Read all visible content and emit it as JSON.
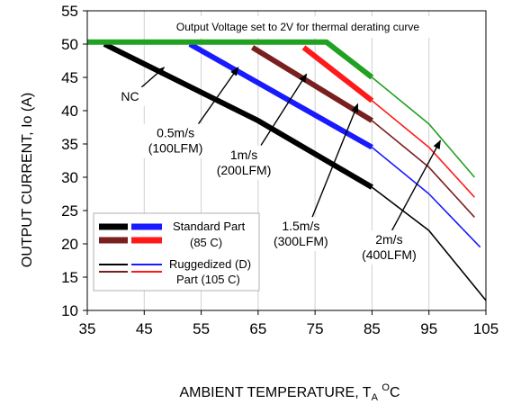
{
  "chart_data": {
    "type": "line",
    "title": "",
    "xlabel": "AMBIENT TEMPERATURE, T",
    "xlabel_sub": "A",
    "xlabel_sup": "O",
    "xlabel_unit": "C",
    "ylabel": "OUTPUT CURRENT, Io  (A)",
    "xlim": [
      35,
      105
    ],
    "ylim": [
      10,
      55
    ],
    "x_ticks": [
      "35",
      "45",
      "55",
      "65",
      "75",
      "85",
      "95",
      "105"
    ],
    "y_ticks": [
      "10",
      "15",
      "20",
      "25",
      "30",
      "35",
      "40",
      "45",
      "50",
      "55"
    ],
    "grid": "vertical",
    "note": "Output Voltage set to 2V for thermal derating curve",
    "legend": {
      "placement": "bottom-left",
      "standard_label_1": "Standard Part",
      "standard_label_2": "(85  C)",
      "rugged_label_1": "Ruggedized (D)",
      "rugged_label_2": "Part (105  C)"
    },
    "series": [
      {
        "name": "NC",
        "color": "#000000",
        "standard": [
          [
            38,
            50
          ],
          [
            65,
            38.5
          ],
          [
            85,
            28.5
          ]
        ],
        "ruggedized": [
          [
            85,
            28.5
          ],
          [
            95,
            22
          ],
          [
            105,
            11.5
          ]
        ]
      },
      {
        "name": "0.5m/s (100LFM)",
        "color": "#1a1aff",
        "standard": [
          [
            53,
            50
          ],
          [
            85,
            34.5
          ]
        ],
        "ruggedized": [
          [
            85,
            34.5
          ],
          [
            95,
            27.5
          ],
          [
            104,
            19.5
          ]
        ]
      },
      {
        "name": "1m/s (200LFM)",
        "color": "#7a1f1f",
        "standard": [
          [
            64,
            49.5
          ],
          [
            85,
            38.5
          ]
        ],
        "ruggedized": [
          [
            85,
            38.5
          ],
          [
            95,
            31.5
          ],
          [
            103,
            24
          ]
        ]
      },
      {
        "name": "1.5m/s (300LFM)",
        "color": "#ff1a1a",
        "standard": [
          [
            73,
            49.5
          ],
          [
            85,
            41.5
          ]
        ],
        "ruggedized": [
          [
            85,
            41.5
          ],
          [
            95,
            34.5
          ],
          [
            103,
            27
          ]
        ]
      },
      {
        "name": "2m/s (400LFM)",
        "color": "#21a121",
        "standard": [
          [
            35,
            50.3
          ],
          [
            77,
            50.3
          ],
          [
            85,
            45
          ]
        ],
        "ruggedized": [
          [
            85,
            45
          ],
          [
            95,
            38
          ],
          [
            103,
            30
          ]
        ]
      }
    ],
    "annotations": [
      {
        "label_1": "NC",
        "label_2": "",
        "text_at": [
          42.5,
          41.5
        ],
        "arrow_from": [
          44.5,
          43.5
        ],
        "arrow_to": [
          48.5,
          46.5
        ]
      },
      {
        "label_1": "0.5m/s",
        "label_2": "(100LFM)",
        "text_at": [
          50.5,
          36.0
        ],
        "arrow_from": [
          54.5,
          38.0
        ],
        "arrow_to": [
          61.5,
          46.5
        ]
      },
      {
        "label_1": "1m/s",
        "label_2": "(200LFM)",
        "text_at": [
          62.5,
          32.7
        ],
        "arrow_from": [
          65.5,
          34.8
        ],
        "arrow_to": [
          73.5,
          45.5
        ]
      },
      {
        "label_1": "1.5m/s",
        "label_2": "(300LFM)",
        "text_at": [
          72.5,
          22.0
        ],
        "arrow_from": [
          74.5,
          24.0
        ],
        "arrow_to": [
          82.5,
          41.0
        ]
      },
      {
        "label_1": "2m/s",
        "label_2": "(400LFM)",
        "text_at": [
          88.0,
          20.0
        ],
        "arrow_from": [
          88.5,
          22.0
        ],
        "arrow_to": [
          97.0,
          35.5
        ]
      }
    ]
  }
}
